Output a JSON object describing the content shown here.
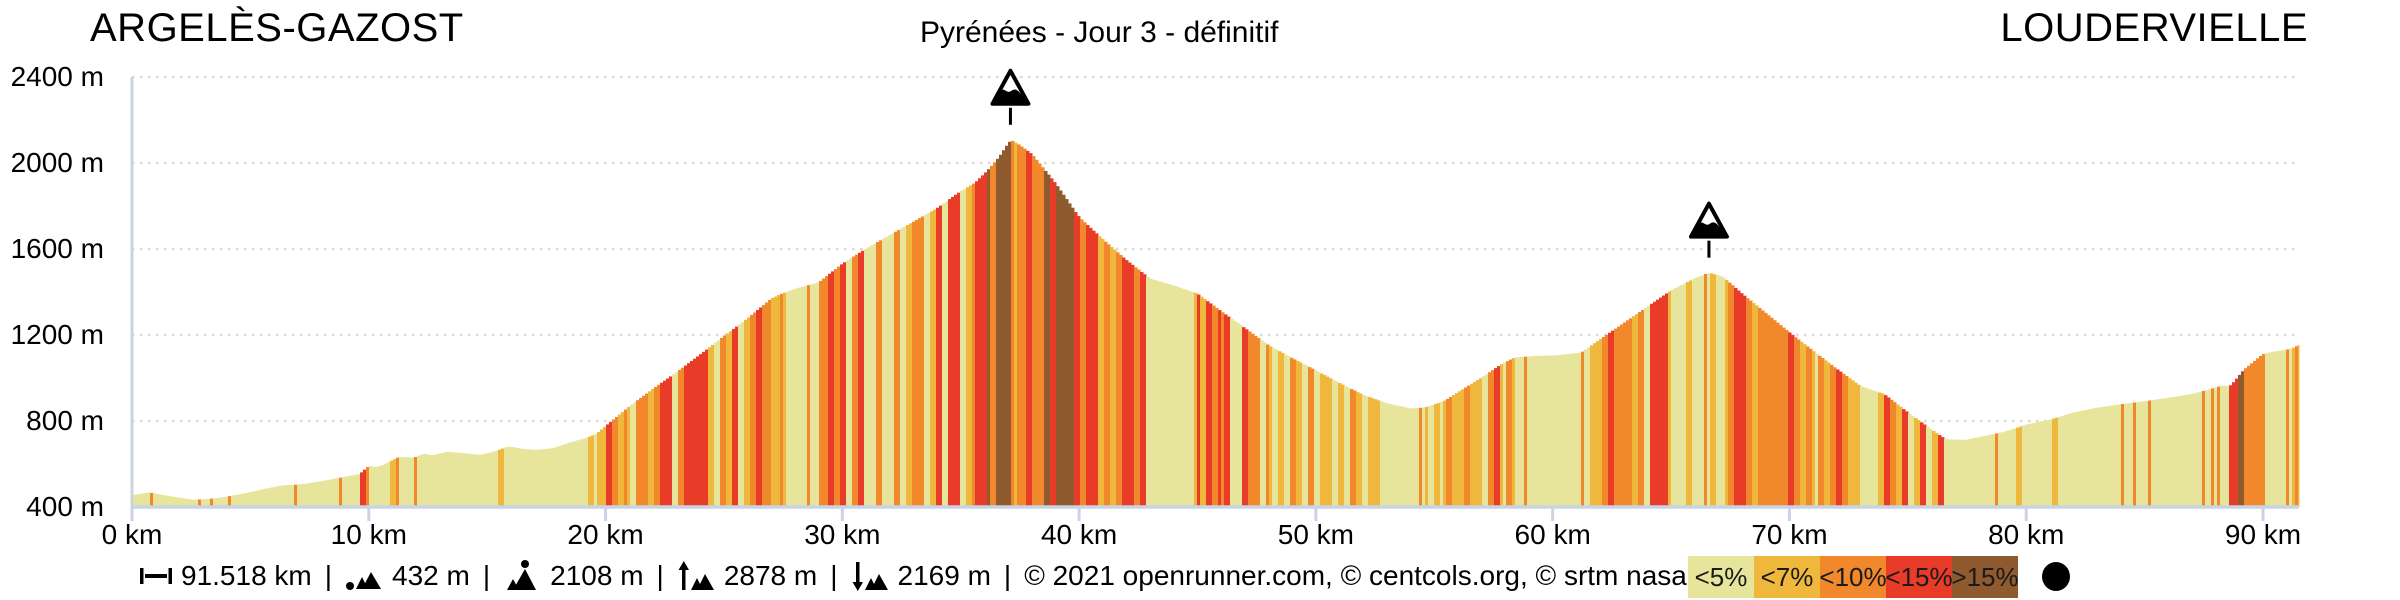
{
  "header": {
    "start_label": "ARGELÈS-GAZOST",
    "title": "Pyrénées - Jour 3 - définitif",
    "end_label": "LOUDERVIELLE"
  },
  "chart_data": {
    "type": "area",
    "title": "Pyrénées - Jour 3 - définitif",
    "start_point": "ARGELÈS-GAZOST",
    "end_point": "LOUDERVIELLE",
    "xlim": [
      0,
      91.518
    ],
    "ylim": [
      400,
      2400
    ],
    "grid": "dotted-horizontal",
    "x_ticks": [
      {
        "km": 0,
        "label": "0 km"
      },
      {
        "km": 10,
        "label": "10 km"
      },
      {
        "km": 20,
        "label": "20 km"
      },
      {
        "km": 30,
        "label": "30 km"
      },
      {
        "km": 40,
        "label": "40 km"
      },
      {
        "km": 50,
        "label": "50 km"
      },
      {
        "km": 60,
        "label": "60 km"
      },
      {
        "km": 70,
        "label": "70 km"
      },
      {
        "km": 80,
        "label": "80 km"
      },
      {
        "km": 90,
        "label": "90 km"
      }
    ],
    "y_ticks": [
      {
        "m": 2400,
        "label": "2400 m"
      },
      {
        "m": 2000,
        "label": "2000 m"
      },
      {
        "m": 1600,
        "label": "1600 m"
      },
      {
        "m": 1200,
        "label": "1200 m"
      },
      {
        "m": 800,
        "label": "800 m"
      },
      {
        "m": 400,
        "label": "400 m"
      }
    ],
    "profile": [
      [
        0,
        455
      ],
      [
        0.7,
        468
      ],
      [
        1.6,
        450
      ],
      [
        2.6,
        433
      ],
      [
        3.6,
        441
      ],
      [
        4.6,
        460
      ],
      [
        5.6,
        484
      ],
      [
        6.3,
        500
      ],
      [
        7.2,
        506
      ],
      [
        8.2,
        524
      ],
      [
        9.2,
        545
      ],
      [
        9.6,
        552
      ],
      [
        10.0,
        592
      ],
      [
        10.3,
        585
      ],
      [
        10.6,
        596
      ],
      [
        11.3,
        634
      ],
      [
        11.9,
        629
      ],
      [
        12.3,
        648
      ],
      [
        12.7,
        640
      ],
      [
        13.3,
        657
      ],
      [
        14.1,
        649
      ],
      [
        14.7,
        642
      ],
      [
        15.3,
        658
      ],
      [
        15.9,
        682
      ],
      [
        16.5,
        670
      ],
      [
        17.1,
        666
      ],
      [
        17.8,
        674
      ],
      [
        18.5,
        700
      ],
      [
        19.2,
        722
      ],
      [
        19.6,
        740
      ],
      [
        21,
        868
      ],
      [
        22,
        950
      ],
      [
        23,
        1027
      ],
      [
        24,
        1110
      ],
      [
        25,
        1195
      ],
      [
        26,
        1278
      ],
      [
        27,
        1370
      ],
      [
        27.5,
        1395
      ],
      [
        28.1,
        1418
      ],
      [
        29,
        1445
      ],
      [
        30,
        1532
      ],
      [
        31,
        1602
      ],
      [
        32,
        1665
      ],
      [
        33,
        1727
      ],
      [
        34,
        1790
      ],
      [
        34.9,
        1862
      ],
      [
        35.6,
        1908
      ],
      [
        36.1,
        1962
      ],
      [
        36.6,
        2025
      ],
      [
        37.1,
        2108
      ],
      [
        37.4,
        2090
      ],
      [
        38,
        2042
      ],
      [
        39,
        1906
      ],
      [
        40,
        1748
      ],
      [
        41,
        1645
      ],
      [
        42,
        1548
      ],
      [
        43,
        1462
      ],
      [
        44,
        1430
      ],
      [
        45,
        1392
      ],
      [
        46,
        1310
      ],
      [
        47,
        1232
      ],
      [
        48,
        1152
      ],
      [
        49,
        1092
      ],
      [
        50,
        1035
      ],
      [
        51,
        976
      ],
      [
        52,
        921
      ],
      [
        53,
        882
      ],
      [
        54,
        858
      ],
      [
        54.6,
        863
      ],
      [
        55.4,
        892
      ],
      [
        56.2,
        948
      ],
      [
        57,
        1002
      ],
      [
        57.8,
        1062
      ],
      [
        58.4,
        1096
      ],
      [
        59.2,
        1102
      ],
      [
        60.2,
        1106
      ],
      [
        61.2,
        1118
      ],
      [
        62,
        1180
      ],
      [
        63,
        1256
      ],
      [
        64,
        1332
      ],
      [
        65,
        1408
      ],
      [
        66,
        1464
      ],
      [
        66.6,
        1490
      ],
      [
        67.2,
        1470
      ],
      [
        68,
        1392
      ],
      [
        69,
        1302
      ],
      [
        70,
        1212
      ],
      [
        71,
        1126
      ],
      [
        72,
        1042
      ],
      [
        73,
        962
      ],
      [
        74,
        925
      ],
      [
        75,
        840
      ],
      [
        76,
        760
      ],
      [
        76.6,
        715
      ],
      [
        77.4,
        712
      ],
      [
        78,
        725
      ],
      [
        79,
        748
      ],
      [
        79.6,
        768
      ],
      [
        80,
        784
      ],
      [
        81,
        806
      ],
      [
        82,
        840
      ],
      [
        83,
        862
      ],
      [
        84,
        878
      ],
      [
        85,
        892
      ],
      [
        85.6,
        902
      ],
      [
        86,
        908
      ],
      [
        87,
        926
      ],
      [
        87.7,
        946
      ],
      [
        88.3,
        966
      ],
      [
        88.6,
        960
      ],
      [
        89.2,
        1040
      ],
      [
        89.7,
        1085
      ],
      [
        90,
        1112
      ],
      [
        90.4,
        1122
      ],
      [
        91,
        1132
      ],
      [
        91.3,
        1140
      ],
      [
        91.518,
        1155
      ]
    ],
    "peaks": [
      {
        "km": 37.1,
        "elevation": 2108,
        "icon": "mountain-peak-icon"
      },
      {
        "km": 66.6,
        "elevation": 1490,
        "icon": "mountain-peak-icon"
      }
    ],
    "gradient_legend": [
      {
        "label": "<5%",
        "color": "#e7e49c",
        "max_grade": 5
      },
      {
        "label": "<7%",
        "color": "#efb83c",
        "max_grade": 7
      },
      {
        "label": "<10%",
        "color": "#f1882c",
        "max_grade": 10
      },
      {
        "label": "<15%",
        "color": "#e83b28",
        "max_grade": 15
      },
      {
        "label": ">15%",
        "color": "#8e5a2e",
        "max_grade": null
      }
    ],
    "point_marker_color": "#000000",
    "colors": {
      "axis": "#c9d3e6",
      "gridline": "#d9d9d9",
      "peak_marker": "#000000"
    }
  },
  "footer": {
    "separator": "|",
    "stats": [
      {
        "icon": "distance-icon",
        "value": "91.518 km"
      },
      {
        "icon": "min-elevation-icon",
        "value": "432 m"
      },
      {
        "icon": "max-elevation-icon",
        "value": "2108 m"
      },
      {
        "icon": "total-ascent-icon",
        "value": "2878 m"
      },
      {
        "icon": "total-descent-icon",
        "value": "2169 m"
      }
    ],
    "copyright": "© 2021 openrunner.com, © centcols.org, © srtm nasa"
  }
}
